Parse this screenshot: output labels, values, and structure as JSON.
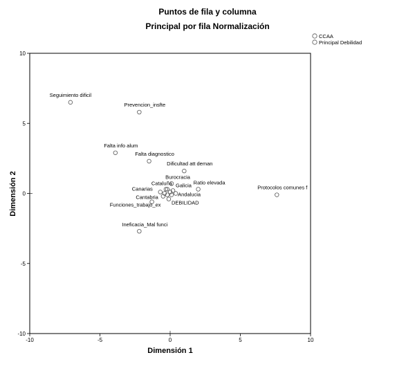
{
  "chart_data": {
    "type": "scatter",
    "title": "Puntos de fila y columna",
    "subtitle": "Principal por fila Normalización",
    "xlabel": "Dimensión 1",
    "ylabel": "Dimensión 2",
    "xlim": [
      -10,
      10
    ],
    "ylim": [
      -10,
      10
    ],
    "xticks": [
      "-10",
      "-5",
      "0",
      "5",
      "10"
    ],
    "yticks": [
      "10",
      "5",
      "0",
      "-5",
      "-10"
    ],
    "grid": false,
    "legend": {
      "placement": "top-right",
      "entries": [
        "CCAA",
        "Principal Debilidad"
      ]
    },
    "marker_color": "#555555",
    "series": [
      {
        "name": "Principal Debilidad",
        "points": [
          {
            "label": "Seguimiento dificil",
            "x": -7.1,
            "y": 6.5
          },
          {
            "label": "Prevencion_insfte",
            "x": -2.2,
            "y": 5.8
          },
          {
            "label": "Falta info alum",
            "x": -3.9,
            "y": 2.9
          },
          {
            "label": "Falta diagnostico",
            "x": -1.5,
            "y": 2.3
          },
          {
            "label": "Dificultad att deman",
            "x": 1.0,
            "y": 1.6
          },
          {
            "label": "Ratio elevada",
            "x": 2.0,
            "y": 0.3
          },
          {
            "label": "Protocolos comunes f",
            "x": 7.6,
            "y": -0.1
          },
          {
            "label": "Funciones_trabajo_ex",
            "x": -1.3,
            "y": -0.6
          },
          {
            "label": "Ineficacia_Mal funci",
            "x": -2.2,
            "y": -2.7
          }
        ]
      },
      {
        "name": "CCAA",
        "points": [
          {
            "label": "Burocracia",
            "x": 0.1,
            "y": 0.7
          },
          {
            "label": "Cataluña",
            "x": -0.3,
            "y": 0.3
          },
          {
            "label": "Galicia",
            "x": 0.2,
            "y": 0.2
          },
          {
            "label": "Canarias",
            "x": -0.7,
            "y": 0.1
          },
          {
            "label": "Andalucia",
            "x": 0.4,
            "y": 0.0
          },
          {
            "label": "Cantabria",
            "x": -0.5,
            "y": -0.2
          },
          {
            "label": "DEBILIDAD",
            "x": -0.1,
            "y": -0.4
          },
          {
            "label": "",
            "x": -0.2,
            "y": 0.3
          },
          {
            "label": "",
            "x": 0.0,
            "y": 0.1
          },
          {
            "label": "",
            "x": -0.4,
            "y": 0.0
          },
          {
            "label": "",
            "x": -0.2,
            "y": -0.1
          },
          {
            "label": "",
            "x": 0.1,
            "y": -0.1
          }
        ]
      }
    ]
  }
}
